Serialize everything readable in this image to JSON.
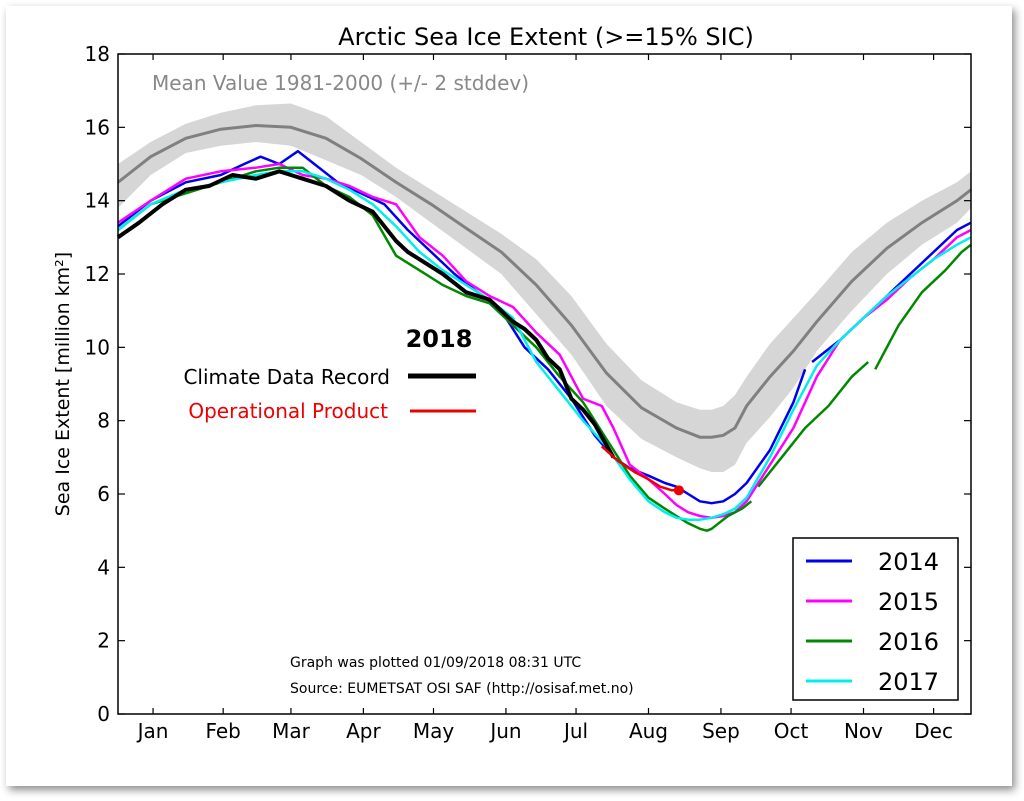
{
  "chart_data": {
    "type": "line",
    "title": "Arctic Sea Ice Extent (>=15% SIC)",
    "ylabel": "Sea Ice Extent [million km²]",
    "xlabel": "",
    "ylim": [
      0,
      18
    ],
    "xlim": [
      1,
      366
    ],
    "yticks": [
      0,
      2,
      4,
      6,
      8,
      10,
      12,
      14,
      16,
      18
    ],
    "month_labels": [
      "Jan",
      "Feb",
      "Mar",
      "Apr",
      "May",
      "Jun",
      "Jul",
      "Aug",
      "Sep",
      "Oct",
      "Nov",
      "Dec"
    ],
    "month_label_days": [
      16,
      46,
      75,
      106,
      136,
      167,
      197,
      228,
      259,
      289,
      320,
      350
    ],
    "mean_label": "Mean Value 1981-2000 (+/- 2 stddev)",
    "mean": {
      "x": [
        1,
        15,
        30,
        45,
        60,
        75,
        90,
        105,
        120,
        135,
        150,
        165,
        180,
        195,
        210,
        225,
        240,
        250,
        255,
        260,
        265,
        270,
        280,
        290,
        300,
        315,
        330,
        345,
        360,
        366
      ],
      "y": [
        14.5,
        15.2,
        15.7,
        15.95,
        16.05,
        16.0,
        15.7,
        15.15,
        14.5,
        13.9,
        13.25,
        12.6,
        11.7,
        10.6,
        9.3,
        8.35,
        7.8,
        7.55,
        7.55,
        7.6,
        7.8,
        8.4,
        9.2,
        9.9,
        10.7,
        11.8,
        12.7,
        13.4,
        14.0,
        14.3
      ]
    },
    "band_upper": [
      15.0,
      15.6,
      16.1,
      16.4,
      16.6,
      16.65,
      16.3,
      15.6,
      14.9,
      14.3,
      13.7,
      13.1,
      12.4,
      11.4,
      10.1,
      9.1,
      8.5,
      8.3,
      8.3,
      8.4,
      8.7,
      9.2,
      10.1,
      10.8,
      11.5,
      12.6,
      13.4,
      14.0,
      14.5,
      14.8
    ],
    "band_lower": [
      13.8,
      14.7,
      15.3,
      15.5,
      15.6,
      15.5,
      15.1,
      14.7,
      14.1,
      13.4,
      12.7,
      12.0,
      10.9,
      9.8,
      8.4,
      7.5,
      7.0,
      6.7,
      6.6,
      6.6,
      6.8,
      7.4,
      8.1,
      8.9,
      9.9,
      11.0,
      12.0,
      12.8,
      13.4,
      13.8
    ],
    "series": [
      {
        "name": "2014",
        "color": "#0000ee",
        "x": [
          1,
          15,
          30,
          45,
          55,
          62,
          70,
          78,
          85,
          95,
          105,
          115,
          125,
          135,
          145,
          155,
          165,
          175,
          185,
          195,
          205,
          213,
          220,
          228,
          235,
          240,
          245,
          250,
          255,
          260,
          265,
          270,
          280,
          290,
          295
        ],
        "y": [
          13.3,
          14.0,
          14.5,
          14.7,
          15.0,
          15.2,
          15.0,
          15.35,
          15.0,
          14.5,
          14.2,
          13.9,
          13.2,
          12.6,
          12.0,
          11.5,
          11.0,
          10.0,
          9.4,
          8.6,
          7.6,
          7.0,
          6.7,
          6.5,
          6.3,
          6.2,
          6.0,
          5.8,
          5.75,
          5.8,
          6.0,
          6.3,
          7.2,
          8.5,
          9.4
        ]
      },
      {
        "name": "2014b",
        "color": "#0000ee",
        "x": [
          298,
          310,
          320,
          330,
          340,
          350,
          360,
          366
        ],
        "y": [
          9.6,
          10.2,
          10.8,
          11.4,
          12.0,
          12.6,
          13.2,
          13.4
        ]
      },
      {
        "name": "2015",
        "color": "#ff00ff",
        "x": [
          1,
          15,
          30,
          45,
          60,
          70,
          80,
          90,
          100,
          110,
          120,
          130,
          140,
          150,
          160,
          170,
          180,
          190,
          200,
          208,
          213,
          220,
          228,
          235,
          240,
          245,
          250,
          255,
          260,
          265,
          270,
          280,
          290,
          300,
          310,
          320,
          330,
          340,
          350,
          360,
          366
        ],
        "y": [
          13.4,
          14.0,
          14.6,
          14.8,
          14.9,
          15.0,
          14.7,
          14.6,
          14.4,
          14.1,
          13.9,
          13.0,
          12.5,
          11.8,
          11.4,
          11.1,
          10.4,
          9.8,
          8.6,
          8.4,
          7.8,
          6.8,
          6.4,
          6.0,
          5.7,
          5.5,
          5.4,
          5.35,
          5.4,
          5.5,
          5.8,
          6.8,
          7.8,
          9.2,
          10.2,
          10.8,
          11.3,
          11.9,
          12.4,
          13.0,
          13.2
        ]
      },
      {
        "name": "2016",
        "color": "#008800",
        "x": [
          1,
          15,
          30,
          45,
          60,
          70,
          80,
          90,
          100,
          110,
          120,
          130,
          140,
          150,
          160,
          170,
          180,
          190,
          200,
          210,
          220,
          228,
          235,
          240,
          245,
          250,
          253,
          255,
          258,
          262,
          268,
          272
        ],
        "y": [
          13.2,
          13.9,
          14.2,
          14.5,
          14.8,
          14.9,
          14.9,
          14.4,
          14.1,
          13.6,
          12.5,
          12.1,
          11.7,
          11.4,
          11.2,
          10.6,
          10.0,
          9.2,
          8.5,
          7.5,
          6.5,
          5.9,
          5.6,
          5.4,
          5.2,
          5.05,
          5.0,
          5.05,
          5.2,
          5.4,
          5.6,
          5.8
        ]
      },
      {
        "name": "2016b",
        "color": "#008800",
        "x": [
          275,
          285,
          295,
          305,
          315,
          322
        ],
        "y": [
          6.2,
          7.0,
          7.8,
          8.4,
          9.2,
          9.6
        ]
      },
      {
        "name": "2016c",
        "color": "#008800",
        "x": [
          325,
          335,
          345,
          355,
          362,
          366
        ],
        "y": [
          9.4,
          10.6,
          11.5,
          12.1,
          12.6,
          12.8
        ]
      },
      {
        "name": "2017",
        "color": "#00eeee",
        "x": [
          1,
          15,
          30,
          45,
          60,
          70,
          80,
          90,
          100,
          110,
          120,
          130,
          140,
          150,
          160,
          170,
          180,
          190,
          200,
          210,
          220,
          228,
          235,
          240,
          245,
          250,
          255,
          260,
          265,
          270,
          280,
          290,
          300,
          310,
          320,
          330,
          340,
          350,
          360,
          366
        ],
        "y": [
          13.2,
          13.9,
          14.3,
          14.5,
          14.7,
          14.8,
          14.8,
          14.6,
          14.3,
          13.9,
          13.3,
          12.6,
          12.1,
          11.7,
          11.3,
          10.8,
          9.6,
          8.8,
          8.0,
          7.3,
          6.4,
          5.8,
          5.5,
          5.35,
          5.3,
          5.3,
          5.35,
          5.45,
          5.6,
          5.9,
          7.0,
          8.3,
          9.5,
          10.2,
          10.8,
          11.4,
          11.9,
          12.4,
          12.8,
          13.0
        ]
      },
      {
        "name": "2018",
        "color": "#000000",
        "x": [
          1,
          10,
          20,
          30,
          40,
          50,
          60,
          70,
          75,
          80,
          90,
          100,
          110,
          120,
          125,
          130,
          140,
          150,
          160,
          165,
          170,
          175,
          180,
          185,
          190,
          195,
          200,
          205,
          213
        ],
        "y": [
          13.0,
          13.4,
          13.9,
          14.3,
          14.4,
          14.7,
          14.6,
          14.8,
          14.7,
          14.6,
          14.4,
          14.0,
          13.7,
          12.9,
          12.6,
          12.4,
          12.0,
          11.5,
          11.3,
          11.0,
          10.7,
          10.5,
          10.2,
          9.7,
          9.4,
          8.6,
          8.3,
          7.9,
          7.0
        ]
      },
      {
        "name": "2018-operational",
        "color": "#ee0000",
        "x": [
          208,
          215,
          222,
          228,
          233,
          238,
          241
        ],
        "y": [
          7.3,
          6.9,
          6.6,
          6.4,
          6.2,
          6.1,
          6.1
        ]
      }
    ],
    "legend": {
      "placement": "bottom-right",
      "entries": [
        {
          "label": "2014",
          "color": "#0000ee"
        },
        {
          "label": "2015",
          "color": "#ff00ff"
        },
        {
          "label": "2016",
          "color": "#008800"
        },
        {
          "label": "2017",
          "color": "#00eeee"
        }
      ]
    },
    "key2018": {
      "year": "2018",
      "cdr_label": "Climate Data Record",
      "op_label": "Operational Product",
      "cdr_color": "#000000",
      "op_color": "#ee0000"
    },
    "footer": {
      "plotted": "Graph was plotted 01/09/2018 08:31 UTC",
      "source": "Source: EUMETSAT OSI SAF (http://osisaf.met.no)"
    }
  }
}
